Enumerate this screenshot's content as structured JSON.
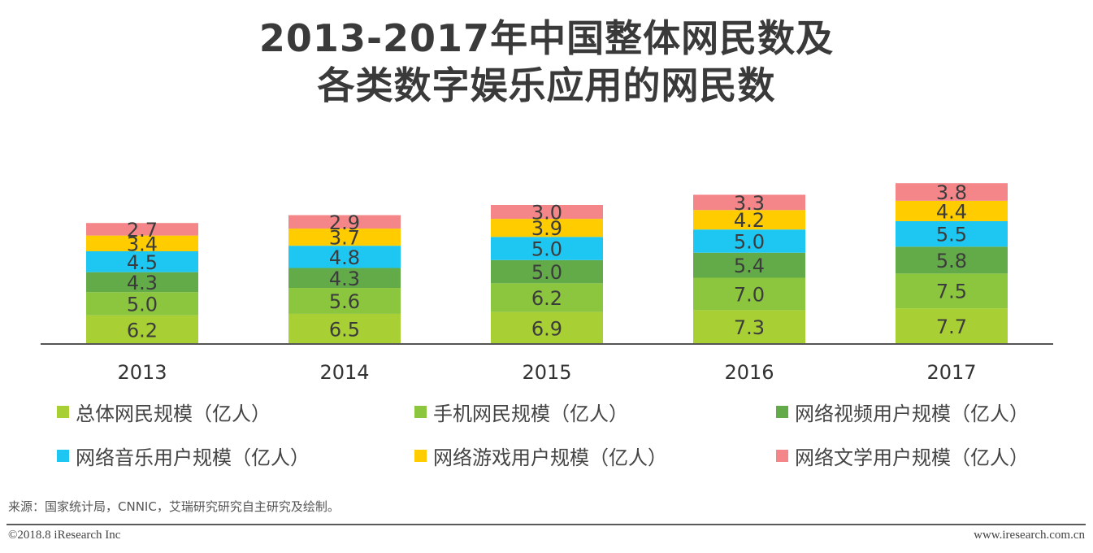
{
  "title": {
    "line1": "2013-2017年中国整体网民数及",
    "line2": "各类数字娱乐应用的网民数"
  },
  "chart_data": {
    "type": "bar",
    "stacked": true,
    "categories": [
      "2013",
      "2014",
      "2015",
      "2016",
      "2017"
    ],
    "series": [
      {
        "name": "总体网民规模（亿人）",
        "color": "#a8cf34",
        "values": [
          6.2,
          6.5,
          6.9,
          7.3,
          7.7
        ]
      },
      {
        "name": "手机网民规模（亿人）",
        "color": "#8cc63f",
        "values": [
          5.0,
          5.6,
          6.2,
          7.0,
          7.5
        ]
      },
      {
        "name": "网络视频用户规模（亿人）",
        "color": "#62ab48",
        "values": [
          4.3,
          4.3,
          5.0,
          5.4,
          5.8
        ]
      },
      {
        "name": "网络音乐用户规模（亿人）",
        "color": "#1ec6f2",
        "values": [
          4.5,
          4.8,
          5.0,
          5.0,
          5.5
        ]
      },
      {
        "name": "网络游戏用户规模（亿人）",
        "color": "#ffcc00",
        "values": [
          3.4,
          3.7,
          3.9,
          4.2,
          4.4
        ]
      },
      {
        "name": "网络文学用户规模（亿人）",
        "color": "#f4868a",
        "values": [
          2.7,
          2.9,
          3.0,
          3.3,
          3.8
        ]
      }
    ],
    "data_labels": true,
    "legend_position": "bottom",
    "grid": false,
    "y_axis_visible": false
  },
  "source": "来源：国家统计局，CNNIC，艾瑞研究研究自主研究及绘制。",
  "footer": {
    "copyright": "©2018.8 iResearch Inc",
    "website": "www.iresearch.com.cn"
  }
}
